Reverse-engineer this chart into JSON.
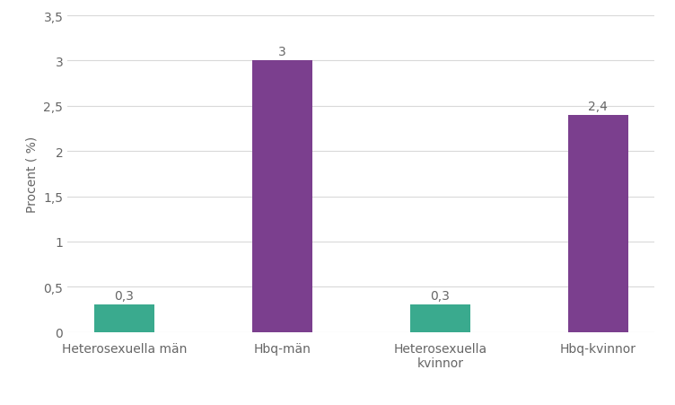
{
  "categories": [
    "Heterosexuella män",
    "Hbq-män",
    "Heterosexuella\nkvinnor",
    "Hbq-kvinnor"
  ],
  "values": [
    0.3,
    3.0,
    0.3,
    2.4
  ],
  "bar_colors": [
    "#3aaa8e",
    "#7b3f8e",
    "#3aaa8e",
    "#7b3f8e"
  ],
  "ylabel": "Procent ( %)",
  "ylim": [
    0,
    3.5
  ],
  "yticks": [
    0,
    0.5,
    1.0,
    1.5,
    2.0,
    2.5,
    3.0,
    3.5
  ],
  "ytick_labels": [
    "0",
    "0,5",
    "1",
    "1,5",
    "2",
    "2,5",
    "3",
    "3,5"
  ],
  "bar_labels": [
    "0,3",
    "3",
    "0,3",
    "2,4"
  ],
  "background_color": "#ffffff",
  "grid_color": "#d9d9d9",
  "bar_width": 0.38,
  "label_fontsize": 10,
  "tick_fontsize": 10,
  "ylabel_fontsize": 10,
  "label_color": "#666666",
  "tick_color": "#666666"
}
